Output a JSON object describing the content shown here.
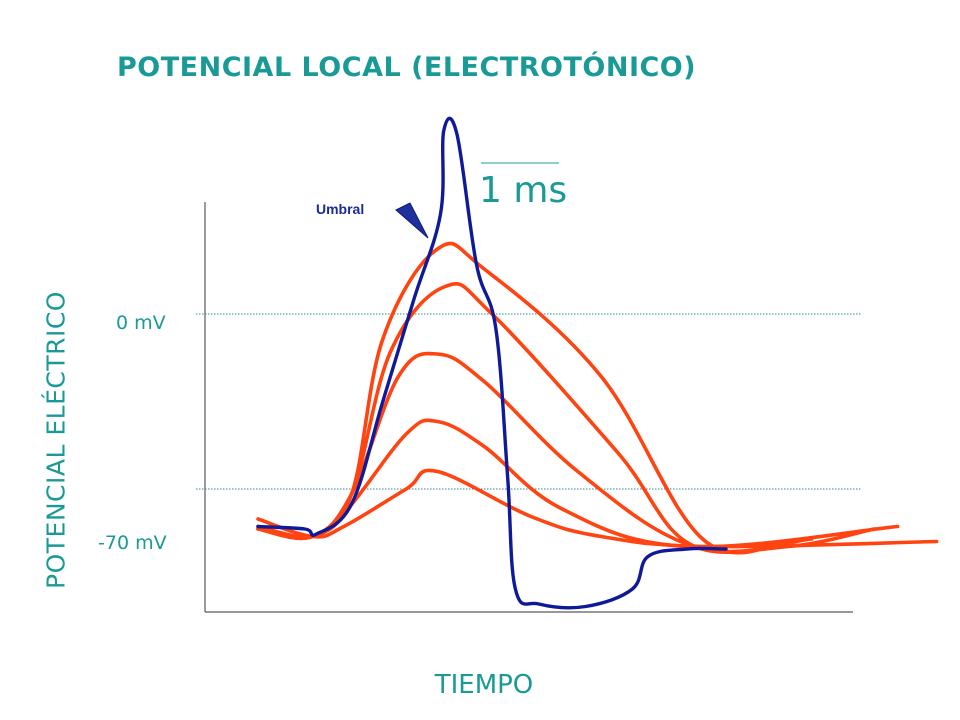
{
  "chart_data": {
    "type": "line",
    "title": "POTENCIAL LOCAL (ELECTROTÓNICO)",
    "xlabel": "TIEMPO",
    "ylabel": "POTENCIAL ELÉCTRICO",
    "y_ticks": [
      "0 mV",
      "-70 mV"
    ],
    "y_tick_values": [
      0,
      -70
    ],
    "ylim": [
      -125,
      50
    ],
    "xlim": [
      0,
      8.7
    ],
    "x_units": "ms",
    "scale_bar": {
      "label": "1 ms",
      "length": 1
    },
    "annotation": {
      "text": "Umbral",
      "x": 2.28,
      "y": -23
    },
    "grid": "dotted reference lines at 0 mV and -70 mV",
    "series": [
      {
        "color": "#ff4411",
        "points": [
          [
            0,
            -82
          ],
          [
            0.7,
            -89
          ],
          [
            1.1,
            -85
          ],
          [
            1.9,
            -70
          ],
          [
            2.3,
            -63
          ],
          [
            3.5,
            -81
          ],
          [
            4.4,
            -89
          ],
          [
            5.8,
            -93
          ],
          [
            8.7,
            -91
          ]
        ]
      },
      {
        "color": "#ff4411",
        "points": [
          [
            0,
            -85
          ],
          [
            0.7,
            -89
          ],
          [
            1.15,
            -78
          ],
          [
            1.9,
            -48
          ],
          [
            2.3,
            -43
          ],
          [
            2.9,
            -53
          ],
          [
            3.9,
            -78
          ],
          [
            5.5,
            -93
          ],
          [
            8.2,
            -85
          ]
        ]
      },
      {
        "color": "#ff4411",
        "points": [
          [
            0,
            -86
          ],
          [
            0.7,
            -89
          ],
          [
            1.2,
            -72
          ],
          [
            1.8,
            -25
          ],
          [
            2.3,
            -16
          ],
          [
            2.9,
            -27
          ],
          [
            4.1,
            -63
          ],
          [
            5.5,
            -92
          ],
          [
            6.8,
            -93
          ],
          [
            7.9,
            -86
          ]
        ]
      },
      {
        "color": "#ff4411",
        "points": [
          [
            0,
            -86
          ],
          [
            0.7,
            -89
          ],
          [
            1.2,
            -72
          ],
          [
            1.7,
            -15
          ],
          [
            2.4,
            11
          ],
          [
            3.0,
            0
          ],
          [
            4.6,
            -55
          ],
          [
            5.6,
            -93
          ],
          [
            7.1,
            -90
          ]
        ]
      },
      {
        "color": "#ff4411",
        "points": [
          [
            0,
            -86
          ],
          [
            0.7,
            -89
          ],
          [
            1.2,
            -72
          ],
          [
            1.6,
            -10
          ],
          [
            2.3,
            26
          ],
          [
            2.9,
            18
          ],
          [
            4.4,
            -25
          ],
          [
            5.7,
            -90
          ],
          [
            6.8,
            -91
          ]
        ]
      },
      {
        "color": "#0f1a9a",
        "points": [
          [
            0,
            -85
          ],
          [
            0.6,
            -86
          ],
          [
            0.75,
            -88
          ],
          [
            1.2,
            -76
          ],
          [
            1.6,
            -35
          ],
          [
            2.0,
            6
          ],
          [
            2.34,
            40
          ],
          [
            2.38,
            73
          ],
          [
            2.55,
            72
          ],
          [
            2.8,
            20
          ],
          [
            3.05,
            -6
          ],
          [
            3.2,
            -65
          ],
          [
            3.3,
            -110
          ],
          [
            3.6,
            -116
          ],
          [
            4.2,
            -117
          ],
          [
            4.8,
            -110
          ],
          [
            5.0,
            -97
          ],
          [
            5.5,
            -94
          ],
          [
            6.0,
            -94
          ]
        ]
      }
    ]
  }
}
